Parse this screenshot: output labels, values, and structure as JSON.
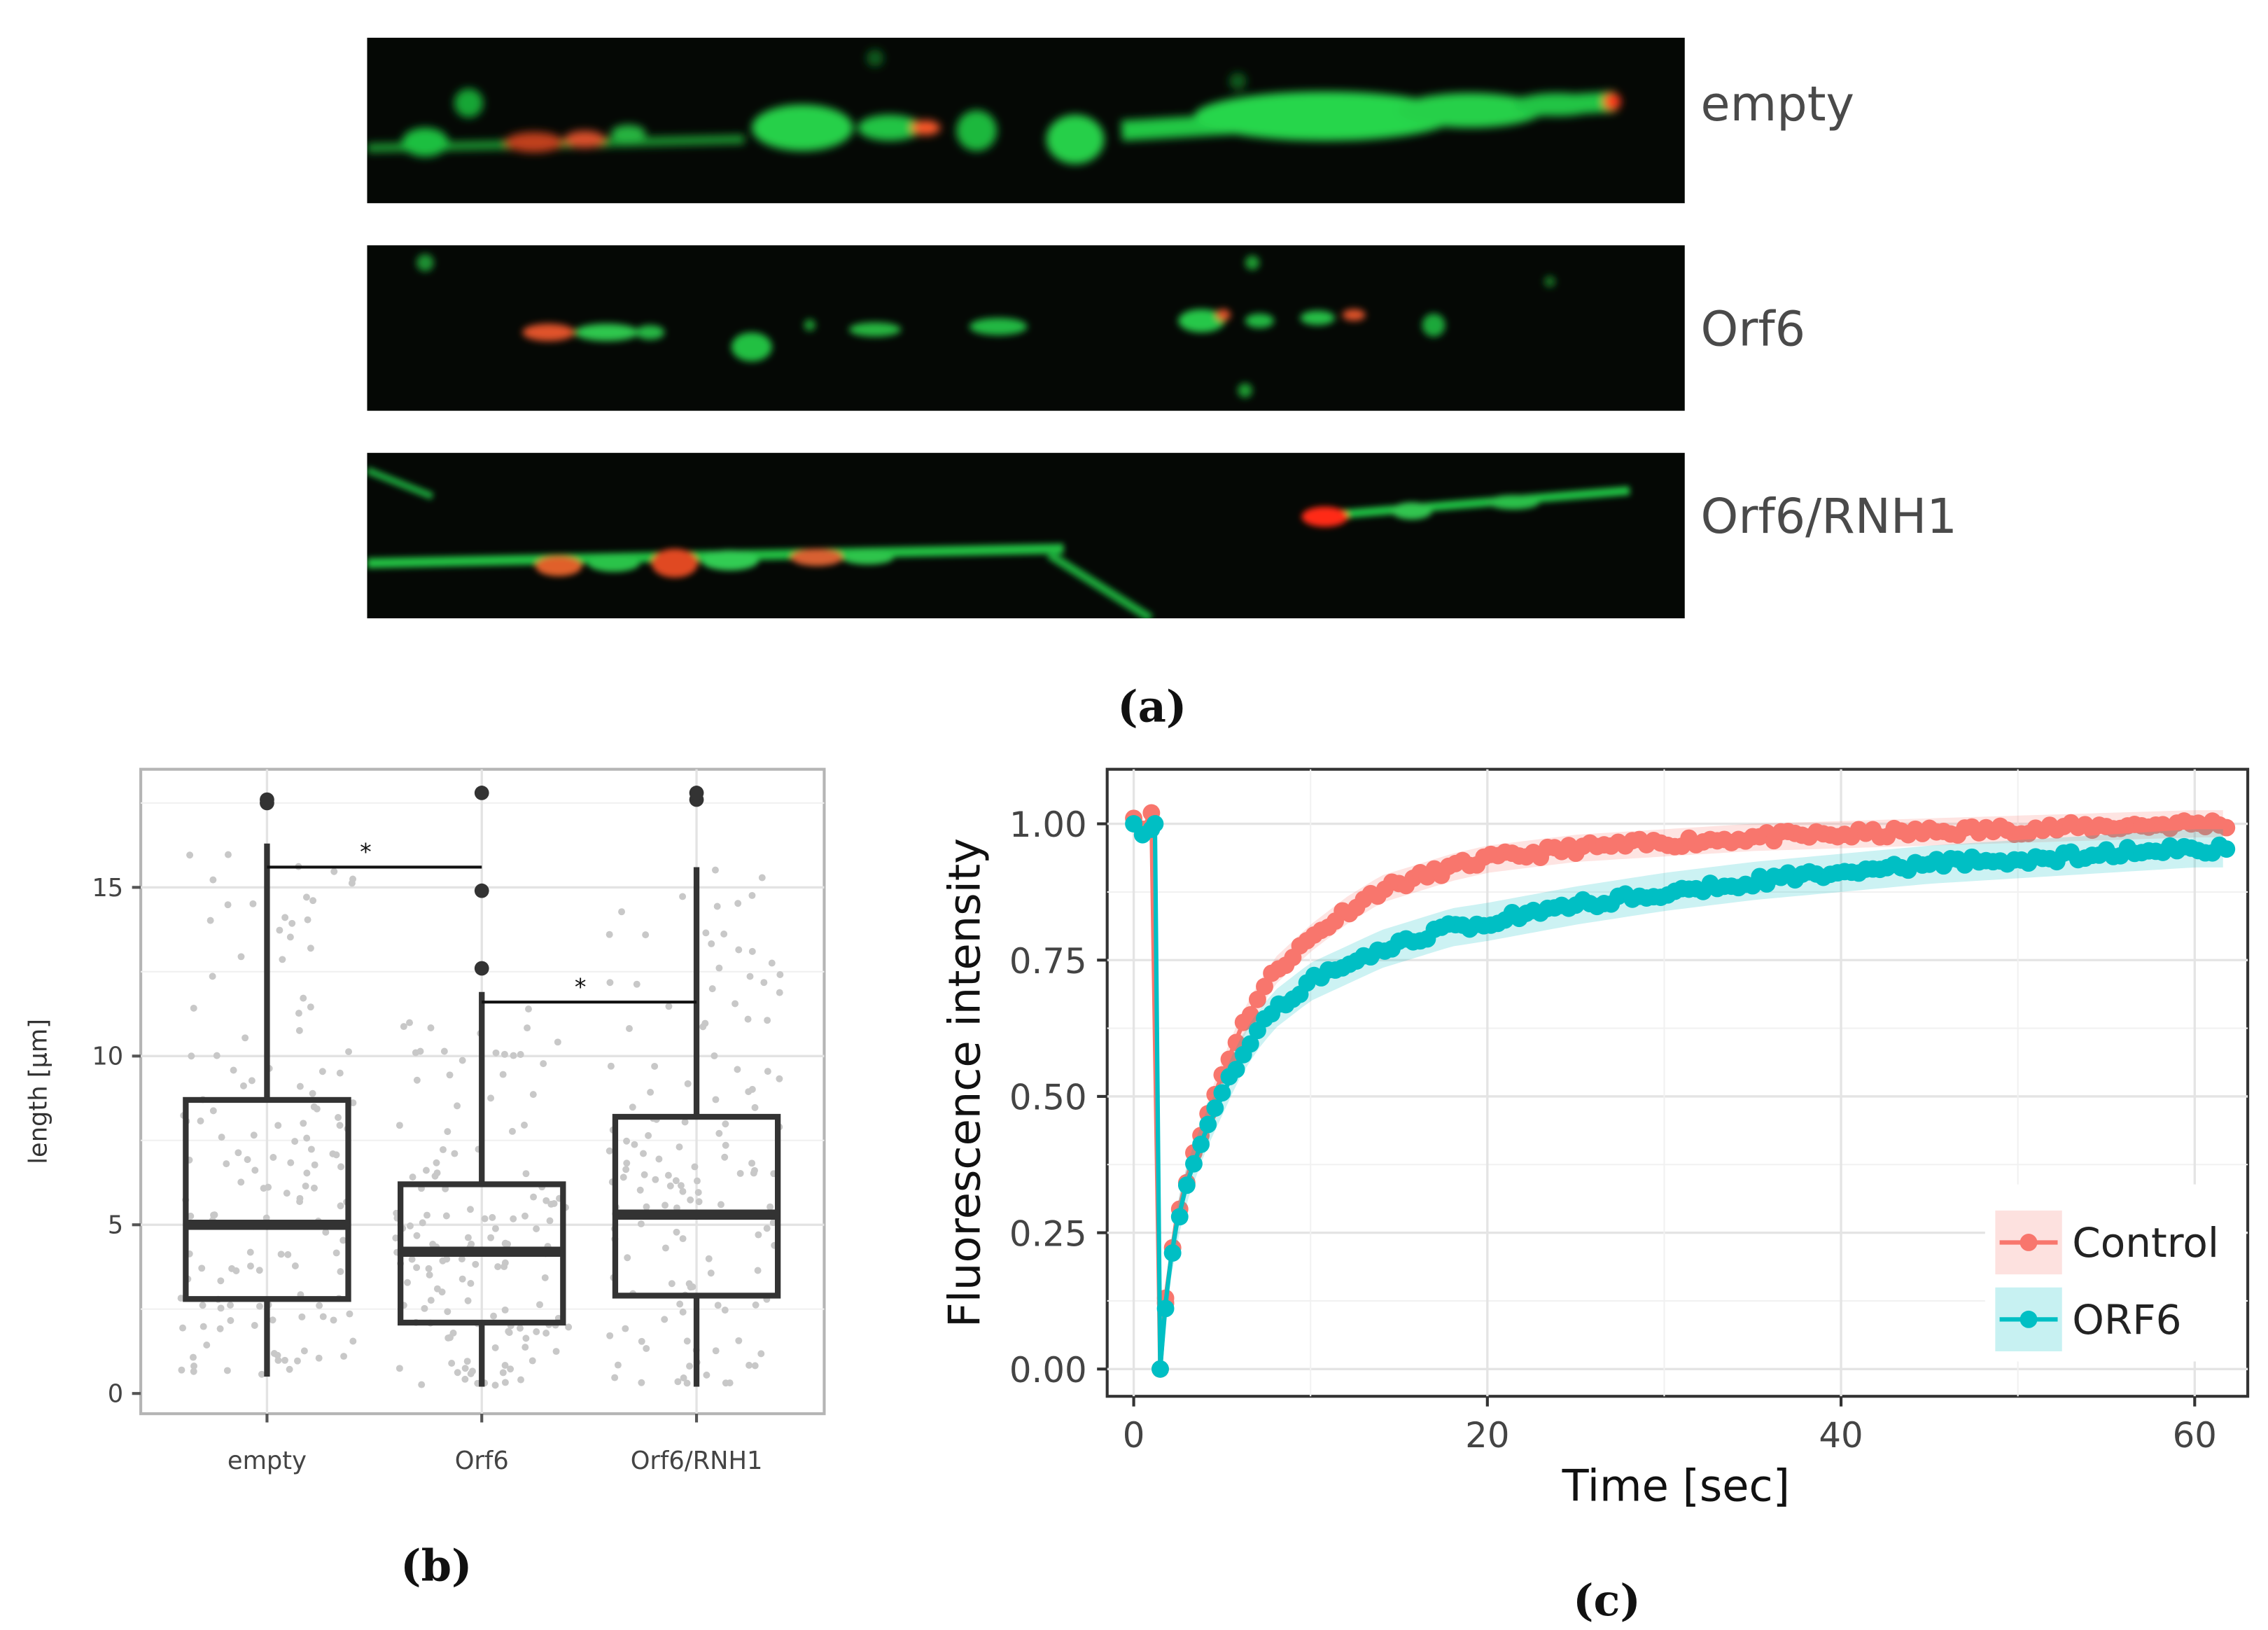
{
  "panel_labels": {
    "a": "(a)",
    "b": "(b)",
    "c": "(c)"
  },
  "micrographs": [
    {
      "label": "empty"
    },
    {
      "label": "Orf6"
    },
    {
      "label": "Orf6/RNH1"
    }
  ],
  "colors": {
    "control": "#f8766d",
    "orf6": "#00bfc4",
    "box": "#333333",
    "jitter": "#c8c8c8",
    "fiber_green": "#22d04a",
    "fiber_red": "#ff3a1e"
  },
  "chart_data": [
    {
      "type": "box",
      "title": "",
      "xlabel": "",
      "ylabel": "length [µm]",
      "ylim": [
        -0.6,
        18.5
      ],
      "yticks": [
        0,
        5,
        10,
        15
      ],
      "categories": [
        "empty",
        "Orf6",
        "Orf6/RNH1"
      ],
      "boxes": [
        {
          "name": "empty",
          "whisker_low": 0.5,
          "q1": 2.8,
          "median": 5.0,
          "q3": 8.7,
          "whisker_high": 16.3,
          "outliers": [
            17.5,
            17.6
          ]
        },
        {
          "name": "Orf6",
          "whisker_low": 0.2,
          "q1": 2.1,
          "median": 4.2,
          "q3": 6.2,
          "whisker_high": 11.9,
          "outliers": [
            12.6,
            14.9,
            17.8
          ]
        },
        {
          "name": "Orf6/RNH1",
          "whisker_low": 0.2,
          "q1": 2.9,
          "median": 5.3,
          "q3": 8.2,
          "whisker_high": 15.6,
          "outliers": [
            17.6,
            17.8
          ]
        }
      ],
      "significance": [
        {
          "from": "empty",
          "to": "Orf6",
          "y": 15.6,
          "label": "*"
        },
        {
          "from": "Orf6",
          "to": "Orf6/RNH1",
          "y": 11.6,
          "label": "*"
        }
      ],
      "grid": true
    },
    {
      "type": "line",
      "title": "",
      "xlabel": "Time [sec]",
      "ylabel": "Fluorescence intensity",
      "xlim": [
        -1.5,
        63
      ],
      "ylim": [
        -0.05,
        1.1
      ],
      "xticks": [
        0,
        20,
        40,
        60
      ],
      "yticks": [
        "0.00",
        "0.25",
        "0.50",
        "0.75",
        "1.00"
      ],
      "legend_position": "bottom-right",
      "series": [
        {
          "name": "Control",
          "color": "#f8766d",
          "points": [
            [
              0.0,
              1.01
            ],
            [
              0.5,
              0.99
            ],
            [
              1.0,
              1.02
            ],
            [
              1.5,
              0.0
            ],
            [
              1.8,
              0.13
            ],
            [
              2.1,
              0.2
            ],
            [
              2.4,
              0.27
            ],
            [
              2.7,
              0.31
            ],
            [
              3,
              0.35
            ],
            [
              4,
              0.45
            ],
            [
              5,
              0.54
            ],
            [
              6,
              0.62
            ],
            [
              7,
              0.68
            ],
            [
              8,
              0.73
            ],
            [
              10,
              0.79
            ],
            [
              12,
              0.84
            ],
            [
              14,
              0.88
            ],
            [
              16,
              0.9
            ],
            [
              18,
              0.92
            ],
            [
              20,
              0.935
            ],
            [
              25,
              0.955
            ],
            [
              30,
              0.965
            ],
            [
              35,
              0.975
            ],
            [
              40,
              0.98
            ],
            [
              45,
              0.985
            ],
            [
              50,
              0.99
            ],
            [
              55,
              0.995
            ],
            [
              60,
              1.0
            ],
            [
              62,
              1.0
            ]
          ]
        },
        {
          "name": "ORF6",
          "color": "#00bfc4",
          "points": [
            [
              0.0,
              1.0
            ],
            [
              0.5,
              0.98
            ],
            [
              1.0,
              0.99
            ],
            [
              1.2,
              1.0
            ],
            [
              1.5,
              0.0
            ],
            [
              1.8,
              0.12
            ],
            [
              2.1,
              0.2
            ],
            [
              2.4,
              0.26
            ],
            [
              2.7,
              0.3
            ],
            [
              3,
              0.34
            ],
            [
              4,
              0.43
            ],
            [
              5,
              0.5
            ],
            [
              6,
              0.57
            ],
            [
              7,
              0.62
            ],
            [
              8,
              0.66
            ],
            [
              10,
              0.71
            ],
            [
              12,
              0.74
            ],
            [
              14,
              0.77
            ],
            [
              16,
              0.79
            ],
            [
              18,
              0.81
            ],
            [
              20,
              0.82
            ],
            [
              25,
              0.85
            ],
            [
              30,
              0.875
            ],
            [
              35,
              0.895
            ],
            [
              40,
              0.91
            ],
            [
              45,
              0.925
            ],
            [
              50,
              0.935
            ],
            [
              55,
              0.945
            ],
            [
              60,
              0.955
            ],
            [
              62,
              0.955
            ]
          ]
        }
      ],
      "grid": true
    }
  ]
}
